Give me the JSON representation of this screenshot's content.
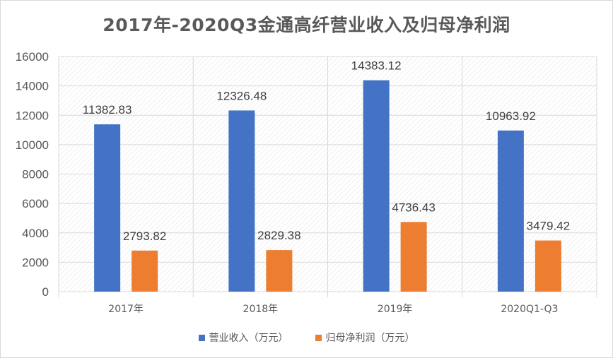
{
  "chart_data": {
    "type": "bar",
    "title": "2017年-2020Q3金通高纤营业收入及归母净利润",
    "categories": [
      "2017年",
      "2018年",
      "2019年",
      "2020Q1-Q3"
    ],
    "series": [
      {
        "name": "营业收入（万元）",
        "color": "#4472c4",
        "values": [
          11382.83,
          12326.48,
          14383.12,
          10963.92
        ],
        "labels": [
          "11382.83",
          "12326.48",
          "14383.12",
          "10963.92"
        ]
      },
      {
        "name": "归母净利润（万元）",
        "color": "#ed7d31",
        "values": [
          2793.82,
          2829.38,
          4736.43,
          3479.42
        ],
        "labels": [
          "2793.82",
          "2829.38",
          "4736.43",
          "3479.42"
        ]
      }
    ],
    "y_ticks": [
      "0",
      "2000",
      "4000",
      "6000",
      "8000",
      "10000",
      "12000",
      "14000",
      "16000"
    ],
    "ylim": [
      0,
      16000
    ],
    "grid": true,
    "legend_position": "bottom"
  }
}
